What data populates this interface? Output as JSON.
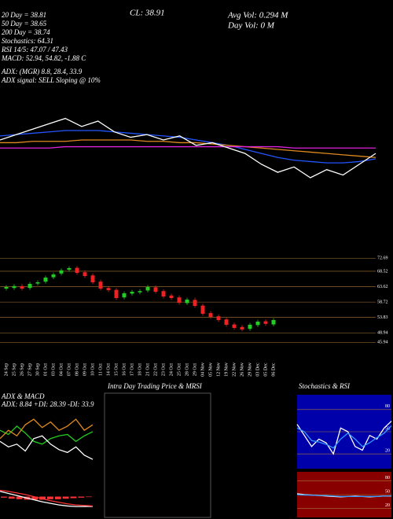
{
  "header": {
    "lines": [
      "20 Day = 38.81",
      "50 Day = 38.65",
      "200 Day = 38.74",
      "Stochastics: 64.31",
      "RSI 14/5: 47.07 / 47.43",
      "MACD: 52.94, 54.82, -1.88 C",
      "ADX: (MGR) 8.8, 28.4, 33.9",
      "ADX signal: SELL Sloping @ 10%"
    ],
    "close": "CL: 38.91",
    "avg_vol": "Avg Vol: 0.294 M",
    "day_vol": "Day Vol: 0 M"
  },
  "chart_data": [
    {
      "type": "line",
      "ylim": [
        36,
        43
      ],
      "series": [
        {
          "name": "20 Day",
          "color": "#2255ff",
          "values": [
            40.5,
            40.6,
            40.7,
            40.8,
            40.9,
            40.9,
            40.9,
            40.8,
            40.7,
            40.6,
            40.5,
            40.4,
            40.2,
            40.0,
            39.8,
            39.5,
            39.2,
            38.9,
            38.7,
            38.6,
            38.5,
            38.5,
            38.6,
            38.8
          ]
        },
        {
          "name": "50 Day",
          "color": "#e08a1e",
          "values": [
            40.0,
            40.0,
            40.1,
            40.1,
            40.1,
            40.2,
            40.2,
            40.2,
            40.2,
            40.1,
            40.1,
            40.0,
            40.0,
            39.9,
            39.8,
            39.7,
            39.6,
            39.5,
            39.4,
            39.3,
            39.2,
            39.1,
            39.0,
            38.9
          ]
        },
        {
          "name": "200 Day",
          "color": "#dd22dd",
          "values": [
            39.6,
            39.6,
            39.6,
            39.6,
            39.7,
            39.7,
            39.7,
            39.7,
            39.7,
            39.7,
            39.7,
            39.7,
            39.7,
            39.7,
            39.7,
            39.7,
            39.7,
            39.7,
            39.6,
            39.6,
            39.6,
            39.6,
            39.6,
            39.6
          ]
        },
        {
          "name": "Price",
          "color": "#ffffff",
          "values": [
            40.2,
            40.6,
            41.0,
            41.4,
            41.8,
            41.2,
            41.6,
            40.8,
            40.4,
            40.6,
            40.2,
            40.5,
            39.8,
            40.0,
            39.6,
            39.2,
            38.4,
            37.8,
            38.2,
            37.4,
            38.0,
            37.6,
            38.4,
            39.2
          ]
        }
      ]
    },
    {
      "type": "candlestick",
      "ylim": [
        44,
        74
      ],
      "yticks": [
        72.69,
        68.52,
        63.62,
        58.72,
        53.83,
        48.94,
        45.94
      ],
      "categories": [
        "24 Sep",
        "25 Sep",
        "26 Sep",
        "27 Sep",
        "30 Sep",
        "01 Oct",
        "03 Oct",
        "04 Oct",
        "07 Oct",
        "08 Oct",
        "09 Oct",
        "10 Oct",
        "11 Oct",
        "14 Oct",
        "15 Oct",
        "16 Oct",
        "17 Oct",
        "18 Oct",
        "21 Oct",
        "22 Oct",
        "23 Oct",
        "24 Oct",
        "25 Oct",
        "28 Oct",
        "29 Oct",
        "04 Nov",
        "05 Nov",
        "12 Nov",
        "19 Nov",
        "22 Nov",
        "26 Nov",
        "29 Nov",
        "03 Dec",
        "05 Dec",
        "06 Dec"
      ],
      "open": [
        63.0,
        63.2,
        63.8,
        63.2,
        64.6,
        65.2,
        66.6,
        67.8,
        69.0,
        69.6,
        68.2,
        67.2,
        65.2,
        63.2,
        62.6,
        60.2,
        61.4,
        61.8,
        62.4,
        63.4,
        62.2,
        60.8,
        60.2,
        58.4,
        59.4,
        57.6,
        55.2,
        54.2,
        53.2,
        51.6,
        50.8,
        50.2,
        51.4,
        52.6,
        51.6
      ],
      "high": [
        64.1,
        64.4,
        64.4,
        65.1,
        65.6,
        67.1,
        68.1,
        69.4,
        70.1,
        70.2,
        68.8,
        67.8,
        65.8,
        63.8,
        63.2,
        62.1,
        62.6,
        62.8,
        64.1,
        64.0,
        62.8,
        61.4,
        60.8,
        60.1,
        60.1,
        58.2,
        55.8,
        54.8,
        53.8,
        52.2,
        51.4,
        52.1,
        53.1,
        53.2,
        53.6
      ],
      "low": [
        62.4,
        62.6,
        62.4,
        62.6,
        64.0,
        64.6,
        66.0,
        67.2,
        68.4,
        67.4,
        66.4,
        64.4,
        62.4,
        61.9,
        59.4,
        59.6,
        60.8,
        61.2,
        61.8,
        61.4,
        59.9,
        59.4,
        57.9,
        57.8,
        56.9,
        54.4,
        53.4,
        52.4,
        50.9,
        49.9,
        49.4,
        49.6,
        50.8,
        51.2,
        51.0
      ],
      "close": [
        63.5,
        63.8,
        63.0,
        64.5,
        65.0,
        66.5,
        67.5,
        68.8,
        69.5,
        68.0,
        67.0,
        65.0,
        63.0,
        62.5,
        60.0,
        61.5,
        62.0,
        62.2,
        63.5,
        62.0,
        60.5,
        60.0,
        58.5,
        59.5,
        57.5,
        55.0,
        54.0,
        53.0,
        51.5,
        50.5,
        50.0,
        51.5,
        52.5,
        51.8,
        53.0
      ]
    },
    {
      "type": "line",
      "title": "ADX & MACD",
      "subtitle": "ADX: 8.84 +DI: 28.39 -DI: 33.9",
      "ylim": [
        0,
        50
      ],
      "series": [
        {
          "name": "+DI",
          "color": "#22cc22",
          "values": [
            30,
            27,
            33,
            28,
            22,
            20,
            24,
            26,
            27,
            22,
            26,
            29
          ]
        },
        {
          "name": "-DI",
          "color": "#e08a1e",
          "values": [
            24,
            30,
            26,
            34,
            38,
            32,
            36,
            30,
            33,
            38,
            30,
            34
          ]
        },
        {
          "name": "ADX",
          "color": "#ffffff",
          "values": [
            22,
            18,
            20,
            15,
            24,
            26,
            20,
            16,
            14,
            18,
            12,
            9
          ]
        }
      ]
    },
    {
      "type": "macd",
      "ylim": [
        -4,
        4
      ],
      "series": [
        {
          "name": "MACD",
          "color": "#ffffff",
          "values": [
            1.0,
            0.6,
            0.2,
            -0.2,
            -0.6,
            -1.0,
            -1.3,
            -1.6,
            -1.8,
            -1.9,
            -1.9,
            -1.88
          ]
        },
        {
          "name": "Signal",
          "color": "#ff3333",
          "values": [
            1.2,
            1.0,
            0.7,
            0.4,
            0.0,
            -0.4,
            -0.8,
            -1.1,
            -1.4,
            -1.6,
            -1.7,
            -1.8
          ]
        },
        {
          "name": "Histogram",
          "color": "#ff3333",
          "values": [
            -0.2,
            -0.4,
            -0.5,
            -0.6,
            -0.6,
            -0.6,
            -0.5,
            -0.5,
            -0.4,
            -0.3,
            -0.2,
            -0.1
          ]
        }
      ]
    },
    {
      "type": "intraday",
      "title": "Intra Day Trading Price & MRSI"
    },
    {
      "type": "line",
      "title": "Stochastics & RSI",
      "ylim": [
        0,
        100
      ],
      "yticks": [
        20,
        50,
        80
      ],
      "background": "#0000aa",
      "series": [
        {
          "name": "%K",
          "color": "#ffffff",
          "values": [
            60,
            45,
            30,
            40,
            35,
            20,
            55,
            50,
            30,
            25,
            45,
            40,
            55,
            64.31
          ]
        },
        {
          "name": "%D",
          "color": "#3399ff",
          "values": [
            55,
            50,
            38,
            36,
            33,
            28,
            40,
            48,
            40,
            30,
            35,
            42,
            48,
            58
          ]
        }
      ]
    },
    {
      "type": "line",
      "ylim": [
        0,
        100
      ],
      "yticks": [
        20,
        50,
        80
      ],
      "background": "#880000",
      "series": [
        {
          "name": "RSI",
          "color": "#ffffff",
          "values": [
            52,
            50,
            49,
            48,
            47,
            46,
            45,
            46,
            47,
            46,
            45,
            46,
            47,
            47.07
          ]
        },
        {
          "name": "MRSI",
          "color": "#3399ff",
          "values": [
            50,
            49,
            49,
            48,
            48,
            47,
            46,
            46,
            46,
            46,
            46,
            46,
            47,
            47.43
          ]
        }
      ]
    }
  ]
}
